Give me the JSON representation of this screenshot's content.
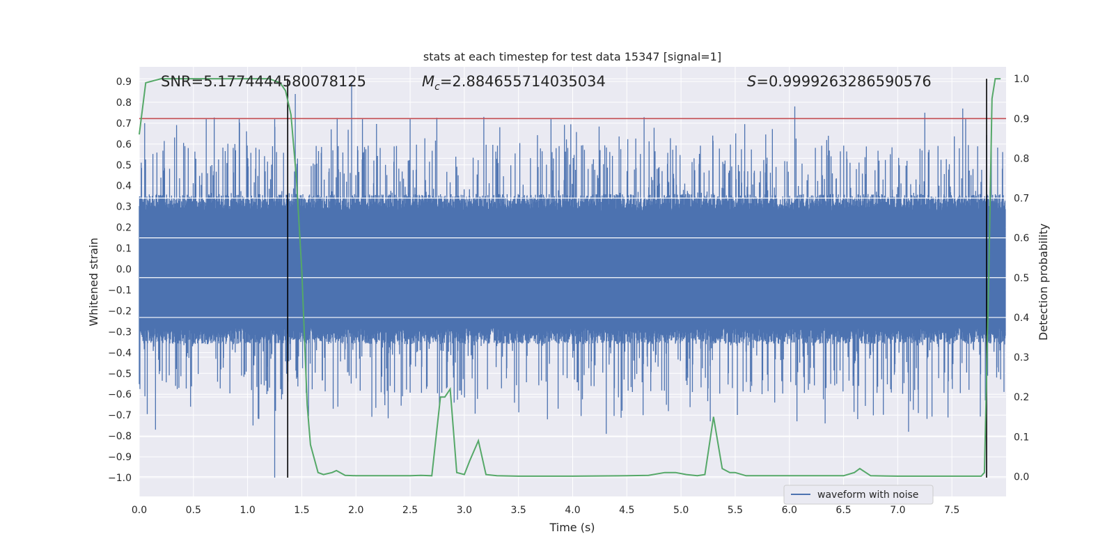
{
  "chart_data": {
    "type": "line",
    "title": "stats at each timestep for test data 15347 [signal=1]",
    "xlabel": "Time (s)",
    "ylabel": "Whitened strain",
    "y2label": "Detection probability",
    "xlim": [
      0.0,
      8.0
    ],
    "ylim": [
      -1.09,
      0.97
    ],
    "y2lim": [
      -0.05,
      1.03
    ],
    "x_ticks": [
      "0.0",
      "0.5",
      "1.0",
      "1.5",
      "2.0",
      "2.5",
      "3.0",
      "3.5",
      "4.0",
      "4.5",
      "5.0",
      "5.5",
      "6.0",
      "6.5",
      "7.0",
      "7.5"
    ],
    "x_tick_values": [
      0,
      0.5,
      1.0,
      1.5,
      2.0,
      2.5,
      3.0,
      3.5,
      4.0,
      4.5,
      5.0,
      5.5,
      6.0,
      6.5,
      7.0,
      7.5
    ],
    "y_ticks": [
      "0.9",
      "0.8",
      "0.7",
      "0.6",
      "0.5",
      "0.4",
      "0.3",
      "0.2",
      "0.1",
      "0.0",
      "−0.1",
      "−0.2",
      "−0.3",
      "−0.4",
      "−0.5",
      "−0.6",
      "−0.7",
      "−0.8",
      "−0.9",
      "−1.0"
    ],
    "y_tick_values": [
      0.9,
      0.8,
      0.7,
      0.6,
      0.5,
      0.4,
      0.3,
      0.2,
      0.1,
      0.0,
      -0.1,
      -0.2,
      -0.3,
      -0.4,
      -0.5,
      -0.6,
      -0.7,
      -0.8,
      -0.9,
      -1.0
    ],
    "y2_ticks": [
      "1.0",
      "0.9",
      "0.8",
      "0.7",
      "0.6",
      "0.5",
      "0.4",
      "0.3",
      "0.2",
      "0.1",
      "0.0"
    ],
    "y2_tick_values": [
      1.0,
      0.9,
      0.8,
      0.7,
      0.6,
      0.5,
      0.4,
      0.3,
      0.2,
      0.1,
      0.0
    ],
    "annotations": {
      "snr": "SNR=5.1774444580078125",
      "mc_symbol": "M",
      "mc_sub": "c",
      "mc_value": "=2.884655714035034",
      "s_symbol": "S",
      "s_value": "=0.9999263286590576"
    },
    "threshold_line": {
      "value": 0.9,
      "axis": "y2",
      "color": "#c44e52"
    },
    "vertical_lines": [
      {
        "x": 1.37,
        "color": "#000000"
      },
      {
        "x": 7.82,
        "color": "#000000"
      }
    ],
    "series": [
      {
        "name": "waveform with noise",
        "axis": "y",
        "color": "#4c72b0",
        "style": "dense noise, roughly symmetric, core amplitude about ±0.3 with spikes up to 0.9 and down to -1.0",
        "peaks": [
          [
            0.05,
            0.7
          ],
          [
            1.25,
            0.72
          ],
          [
            1.44,
            0.84
          ],
          [
            1.96,
            0.89
          ],
          [
            2.06,
            0.72
          ],
          [
            2.5,
            0.72
          ],
          [
            3.18,
            0.73
          ],
          [
            3.8,
            0.72
          ],
          [
            6.05,
            0.78
          ],
          [
            7.25,
            0.75
          ],
          [
            7.6,
            0.77
          ]
        ],
        "troughs": [
          [
            0.15,
            -0.77
          ],
          [
            1.05,
            -0.75
          ],
          [
            1.25,
            -1.0
          ],
          [
            2.77,
            -0.65
          ],
          [
            4.31,
            -0.79
          ],
          [
            5.27,
            -0.73
          ],
          [
            6.07,
            -0.73
          ],
          [
            6.33,
            -0.74
          ],
          [
            7.1,
            -0.78
          ],
          [
            7.82,
            -0.68
          ]
        ]
      },
      {
        "name": "Detection probability",
        "axis": "y2",
        "color": "#55a868",
        "x": [
          0.0,
          0.06,
          0.2,
          0.5,
          1.0,
          1.2,
          1.3,
          1.35,
          1.4,
          1.45,
          1.5,
          1.55,
          1.58,
          1.65,
          1.7,
          1.78,
          1.82,
          1.9,
          2.0,
          2.2,
          2.5,
          2.6,
          2.7,
          2.78,
          2.82,
          2.87,
          2.93,
          3.0,
          3.05,
          3.13,
          3.2,
          3.3,
          3.5,
          4.0,
          4.5,
          4.7,
          4.85,
          4.95,
          5.05,
          5.15,
          5.22,
          5.3,
          5.38,
          5.45,
          5.5,
          5.6,
          6.0,
          6.2,
          6.5,
          6.6,
          6.65,
          6.75,
          7.0,
          7.5,
          7.77,
          7.8,
          7.84,
          7.87,
          7.9,
          7.95
        ],
        "y": [
          0.86,
          0.99,
          1.0,
          1.0,
          1.0,
          1.0,
          0.99,
          0.97,
          0.91,
          0.75,
          0.52,
          0.18,
          0.08,
          0.01,
          0.005,
          0.01,
          0.015,
          0.003,
          0.002,
          0.002,
          0.002,
          0.003,
          0.002,
          0.2,
          0.2,
          0.22,
          0.01,
          0.005,
          0.04,
          0.09,
          0.005,
          0.002,
          0.001,
          0.001,
          0.002,
          0.003,
          0.01,
          0.01,
          0.005,
          0.002,
          0.005,
          0.15,
          0.02,
          0.01,
          0.01,
          0.002,
          0.002,
          0.002,
          0.002,
          0.01,
          0.02,
          0.002,
          0.001,
          0.001,
          0.001,
          0.01,
          0.5,
          0.95,
          1.0,
          1.0
        ]
      }
    ],
    "legend": {
      "label": "waveform with noise",
      "location": "lower-right"
    }
  }
}
